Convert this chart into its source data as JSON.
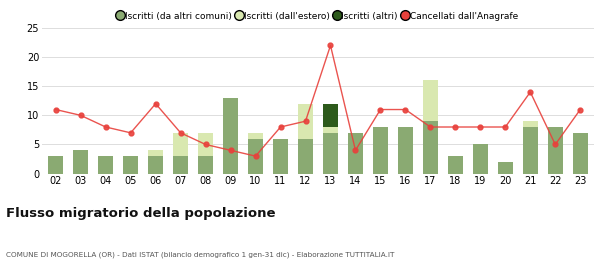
{
  "years": [
    "02",
    "03",
    "04",
    "05",
    "06",
    "07",
    "08",
    "09",
    "10",
    "11",
    "12",
    "13",
    "14",
    "15",
    "16",
    "17",
    "18",
    "19",
    "20",
    "21",
    "22",
    "23"
  ],
  "iscritti_altri_comuni": [
    3,
    4,
    3,
    3,
    3,
    3,
    3,
    13,
    6,
    6,
    6,
    7,
    7,
    8,
    8,
    9,
    3,
    5,
    2,
    8,
    8,
    7
  ],
  "iscritti_estero": [
    0,
    0,
    0,
    0,
    1,
    4,
    4,
    0,
    1,
    0,
    6,
    1,
    0,
    0,
    0,
    7,
    0,
    0,
    0,
    1,
    0,
    0
  ],
  "iscritti_altri": [
    0,
    0,
    0,
    0,
    0,
    0,
    0,
    0,
    0,
    0,
    0,
    4,
    0,
    0,
    0,
    0,
    0,
    0,
    0,
    0,
    0,
    0
  ],
  "cancellati": [
    11,
    10,
    8,
    7,
    12,
    7,
    5,
    4,
    3,
    8,
    9,
    22,
    4,
    11,
    11,
    8,
    8,
    8,
    8,
    14,
    5,
    11
  ],
  "color_iscritti_comuni": "#8aaa72",
  "color_iscritti_estero": "#d9e8b0",
  "color_iscritti_altri": "#2d5a1b",
  "color_cancellati": "#e8413c",
  "title": "Flusso migratorio della popolazione",
  "subtitle": "COMUNE DI MOGORELLA (OR) - Dati ISTAT (bilancio demografico 1 gen-31 dic) - Elaborazione TUTTITALIA.IT",
  "ylim": [
    0,
    25
  ],
  "yticks": [
    0,
    5,
    10,
    15,
    20,
    25
  ],
  "legend_labels": [
    "Iscritti (da altri comuni)",
    "Iscritti (dall'estero)",
    "Iscritti (altri)",
    "Cancellati dall'Anagrafe"
  ],
  "background_color": "#ffffff",
  "grid_color": "#dddddd",
  "legend_circle_colors": [
    "#8aaa72",
    "#d9e8b0",
    "#2d5a1b",
    "#e8413c"
  ]
}
